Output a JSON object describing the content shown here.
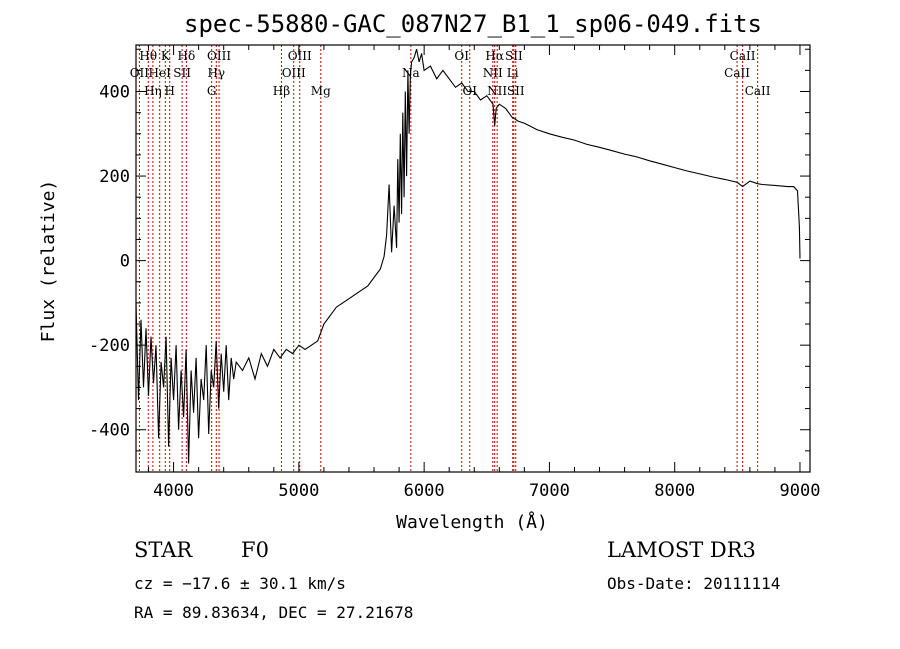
{
  "chart_data": {
    "type": "line",
    "title": "spec-55880-GAC_087N27_B1_1_sp06-049.fits",
    "xlabel": "Wavelength (Å)",
    "ylabel": "Flux (relative)",
    "xlim": [
      3700,
      9080
    ],
    "ylim": [
      -500,
      510
    ],
    "xticks": [
      4000,
      5000,
      6000,
      7000,
      8000,
      9000
    ],
    "yticks": [
      -400,
      -200,
      0,
      200,
      400
    ],
    "minor_xtick_step": 200,
    "minor_ytick_step": 50,
    "grid": false,
    "line_color": "#000000",
    "marker_color": "#cc0000",
    "series": [
      {
        "name": "spectrum",
        "x": [
          3700,
          3720,
          3740,
          3760,
          3780,
          3800,
          3820,
          3840,
          3860,
          3880,
          3900,
          3920,
          3940,
          3960,
          3980,
          4000,
          4020,
          4040,
          4060,
          4080,
          4100,
          4120,
          4140,
          4160,
          4180,
          4200,
          4220,
          4240,
          4260,
          4280,
          4300,
          4320,
          4340,
          4360,
          4380,
          4400,
          4420,
          4440,
          4460,
          4480,
          4500,
          4550,
          4600,
          4650,
          4700,
          4750,
          4800,
          4850,
          4900,
          4950,
          5000,
          5050,
          5100,
          5150,
          5200,
          5250,
          5300,
          5350,
          5400,
          5450,
          5500,
          5550,
          5600,
          5650,
          5680,
          5700,
          5720,
          5740,
          5760,
          5780,
          5790,
          5800,
          5810,
          5820,
          5830,
          5840,
          5850,
          5860,
          5870,
          5880,
          5890,
          5900,
          5920,
          5940,
          5960,
          5980,
          6000,
          6050,
          6100,
          6150,
          6200,
          6250,
          6300,
          6350,
          6400,
          6450,
          6500,
          6550,
          6563,
          6575,
          6600,
          6650,
          6700,
          6750,
          6800,
          6900,
          7000,
          7100,
          7200,
          7300,
          7400,
          7500,
          7600,
          7700,
          7800,
          7900,
          8000,
          8100,
          8200,
          8300,
          8400,
          8500,
          8542,
          8600,
          8662,
          8700,
          8800,
          8900,
          8950,
          8980,
          8995,
          9000
        ],
        "y": [
          -100,
          -330,
          -140,
          -300,
          -160,
          -320,
          -180,
          -290,
          -200,
          -420,
          -240,
          -300,
          -180,
          -440,
          -230,
          -330,
          -200,
          -400,
          -260,
          -370,
          -210,
          -480,
          -260,
          -360,
          -230,
          -420,
          -280,
          -330,
          -200,
          -410,
          -260,
          -300,
          -190,
          -350,
          -220,
          -310,
          -200,
          -330,
          -230,
          -280,
          -240,
          -260,
          -230,
          -280,
          -220,
          -250,
          -210,
          -230,
          -210,
          -220,
          -200,
          -210,
          -200,
          -190,
          -150,
          -130,
          -110,
          -100,
          -90,
          -80,
          -70,
          -60,
          -40,
          -20,
          10,
          60,
          180,
          20,
          130,
          30,
          240,
          90,
          300,
          110,
          350,
          150,
          400,
          200,
          450,
          300,
          440,
          470,
          480,
          500,
          470,
          490,
          450,
          460,
          430,
          450,
          430,
          410,
          420,
          400,
          400,
          380,
          390,
          370,
          320,
          360,
          370,
          360,
          340,
          330,
          325,
          310,
          300,
          292,
          285,
          275,
          268,
          260,
          252,
          245,
          236,
          228,
          220,
          212,
          205,
          198,
          192,
          185,
          175,
          188,
          182,
          180,
          178,
          175,
          175,
          165,
          80,
          5
        ]
      }
    ],
    "line_markers": [
      {
        "wavelength": 3727,
        "label": "OII",
        "row": 2
      },
      {
        "wavelength": 3798,
        "label": "Hθ",
        "row": 1
      },
      {
        "wavelength": 3835,
        "label": "Hη",
        "row": 3
      },
      {
        "wavelength": 3889,
        "label": "HeI",
        "row": 2
      },
      {
        "wavelength": 3934,
        "label": "K",
        "row": 1
      },
      {
        "wavelength": 3969,
        "label": "H",
        "row": 3
      },
      {
        "wavelength": 4068,
        "label": "SII",
        "row": 2
      },
      {
        "wavelength": 4102,
        "label": "Hδ",
        "row": 1
      },
      {
        "wavelength": 4304,
        "label": "G",
        "row": 3
      },
      {
        "wavelength": 4341,
        "label": "Hγ",
        "row": 2
      },
      {
        "wavelength": 4363,
        "label": "OIII",
        "row": 1
      },
      {
        "wavelength": 4861,
        "label": "Hβ",
        "row": 3
      },
      {
        "wavelength": 4959,
        "label": "OIII",
        "row": 2
      },
      {
        "wavelength": 5007,
        "label": "OIII",
        "row": 1
      },
      {
        "wavelength": 5175,
        "label": "Mg",
        "row": 3
      },
      {
        "wavelength": 5894,
        "label": "Na",
        "row": 2
      },
      {
        "wavelength": 6300,
        "label": "OI",
        "row": 1
      },
      {
        "wavelength": 6364,
        "label": "OI",
        "row": 3
      },
      {
        "wavelength": 6548,
        "label": "NII",
        "row": 2
      },
      {
        "wavelength": 6563,
        "label": "Hα",
        "row": 1
      },
      {
        "wavelength": 6583,
        "label": "NII",
        "row": 3
      },
      {
        "wavelength": 6707,
        "label": "Li",
        "row": 2
      },
      {
        "wavelength": 6716,
        "label": "SII",
        "row": 1
      },
      {
        "wavelength": 6731,
        "label": "SII",
        "row": 3
      },
      {
        "wavelength": 8498,
        "label": "CaII",
        "row": 2
      },
      {
        "wavelength": 8542,
        "label": "CaII",
        "row": 1
      },
      {
        "wavelength": 8662,
        "label": "CaII",
        "row": 3
      }
    ]
  },
  "footer": {
    "object_type": "STAR",
    "subclass": "F0",
    "survey": "LAMOST DR3",
    "redshift": "cz = −17.6 ± 30.1 km/s",
    "obs_date": "Obs-Date: 20111114",
    "coords": "RA =  89.83634, DEC =  27.21678"
  }
}
